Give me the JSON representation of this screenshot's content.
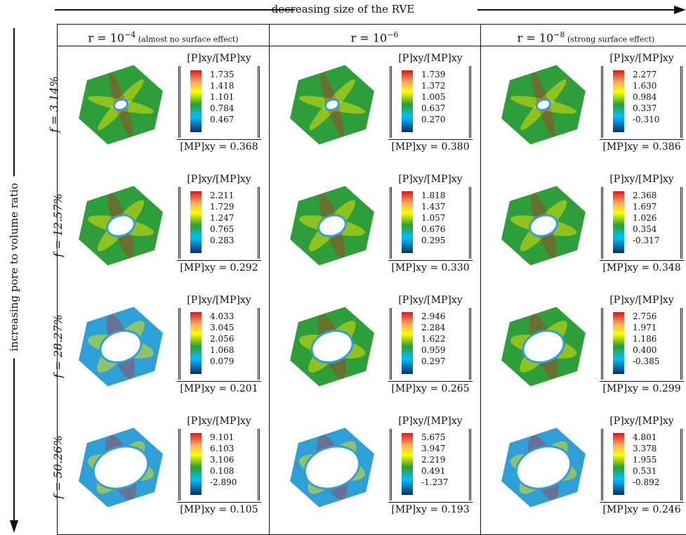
{
  "top_label": "decreasing size of the RVE",
  "left_label": "increasing pore to volume ratio",
  "legend_title": "[P]xy/[MP]xy",
  "columns": [
    {
      "label": "r = 10",
      "exp": "−4",
      "note": "(almost no surface effect)"
    },
    {
      "label": "r = 10",
      "exp": "−6",
      "note": ""
    },
    {
      "label": "r = 10",
      "exp": "−8",
      "note": "(strong surface effect)"
    }
  ],
  "rows": [
    {
      "label": "f = 3.14%",
      "pore": 0.18,
      "cells": [
        {
          "vals": [
            "1.735",
            "1.418",
            "1.101",
            "0.784",
            "0.467"
          ],
          "ref": "0.368"
        },
        {
          "vals": [
            "1.739",
            "1.372",
            "1.005",
            "0.637",
            "0.270"
          ],
          "ref": "0.380"
        },
        {
          "vals": [
            "2.277",
            "1.630",
            "0.984",
            "0.337",
            "-0.310"
          ],
          "ref": "0.386"
        }
      ]
    },
    {
      "label": "f = 12.57%",
      "pore": 0.36,
      "cells": [
        {
          "vals": [
            "2.211",
            "1.729",
            "1.247",
            "0.765",
            "0.283"
          ],
          "ref": "0.292"
        },
        {
          "vals": [
            "1.818",
            "1.437",
            "1.057",
            "0.676",
            "0.295"
          ],
          "ref": "0.330"
        },
        {
          "vals": [
            "2.368",
            "1.697",
            "1.026",
            "0.354",
            "-0.317"
          ],
          "ref": "0.348"
        }
      ]
    },
    {
      "label": "f = 28.27%",
      "pore": 0.54,
      "cells": [
        {
          "vals": [
            "4.033",
            "3.045",
            "2.056",
            "1.068",
            "0.079"
          ],
          "ref": "0.201"
        },
        {
          "vals": [
            "2.946",
            "2.284",
            "1.622",
            "0.959",
            "0.297"
          ],
          "ref": "0.265"
        },
        {
          "vals": [
            "2.756",
            "1.971",
            "1.186",
            "0.400",
            "-0.385"
          ],
          "ref": "0.299"
        }
      ]
    },
    {
      "label": "f = 50.26%",
      "pore": 0.72,
      "cells": [
        {
          "vals": [
            "9.101",
            "6.103",
            "3.106",
            "0.108",
            "-2.890"
          ],
          "ref": "0.105"
        },
        {
          "vals": [
            "5.675",
            "3.947",
            "2.219",
            "0.491",
            "-1.237"
          ],
          "ref": "0.193"
        },
        {
          "vals": [
            "4.801",
            "3.378",
            "1.955",
            "0.531",
            "-0.892"
          ],
          "ref": "0.246"
        }
      ]
    }
  ],
  "colors": {
    "green": "#2e9e3a",
    "blue": "#2f9fd8",
    "red": "#d7191c",
    "yellow": "#f2e600"
  }
}
